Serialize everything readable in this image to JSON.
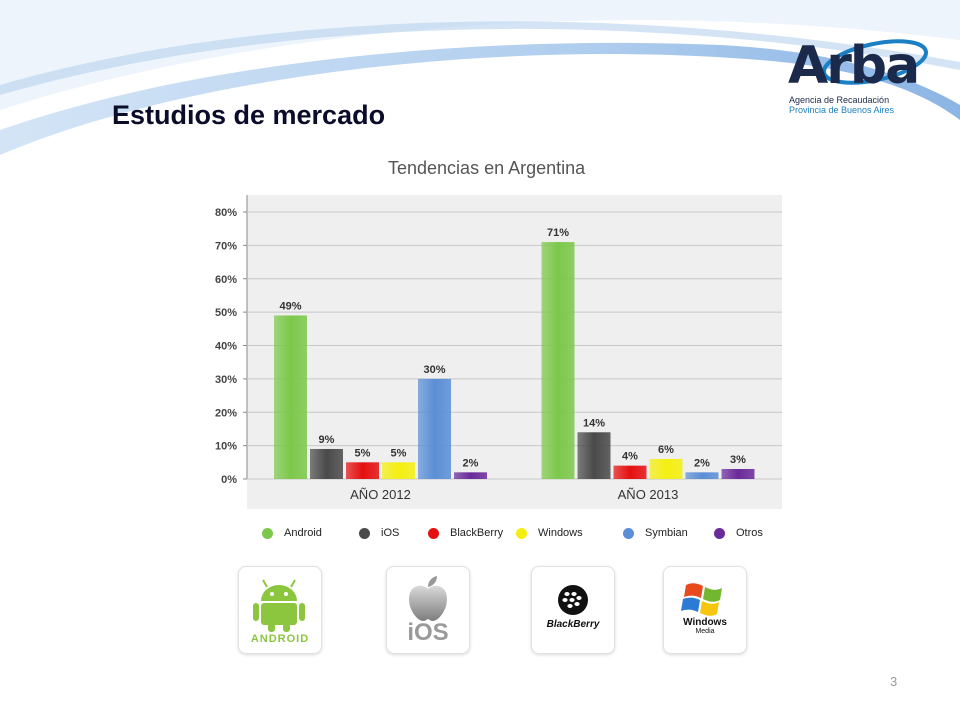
{
  "slide": {
    "title": "Estudios de mercado",
    "page_number": "3"
  },
  "logo": {
    "word": "Arba",
    "line1": "Agencia de Recaudación",
    "line2": "Provincia de Buenos Aires"
  },
  "chart_data": {
    "type": "bar",
    "title": "Tendencias en Argentina",
    "categories": [
      "AÑO 2012",
      "AÑO 2013"
    ],
    "y_ticks": [
      "0%",
      "10%",
      "20%",
      "30%",
      "40%",
      "50%",
      "60%",
      "70%",
      "80%"
    ],
    "ylim": [
      0,
      80
    ],
    "grid": true,
    "legend_position": "bottom",
    "series": [
      {
        "name": "Android",
        "color": "#7cc84a",
        "values": [
          49,
          71
        ],
        "labels": [
          "49%",
          "71%"
        ]
      },
      {
        "name": "iOS",
        "color": "#4a4a4a",
        "values": [
          9,
          14
        ],
        "labels": [
          "9%",
          "14%"
        ]
      },
      {
        "name": "BlackBerry",
        "color": "#e51010",
        "values": [
          5,
          4
        ],
        "labels": [
          "5%",
          "4%"
        ]
      },
      {
        "name": "Windows",
        "color": "#f4ef10",
        "values": [
          5,
          6
        ],
        "labels": [
          "5%",
          "6%"
        ]
      },
      {
        "name": "Symbian",
        "color": "#5b8ed6",
        "values": [
          30,
          2
        ],
        "labels": [
          "30%",
          "2%"
        ]
      },
      {
        "name": "Otros",
        "color": "#6a2a9a",
        "values": [
          2,
          3
        ],
        "labels": [
          "2%",
          "3%"
        ]
      }
    ]
  },
  "brands": {
    "android_text": "ANDROID",
    "ios_text": "iOS",
    "blackberry_text": "BlackBerry",
    "windows_text": "Windows",
    "windows_sub": "Media"
  }
}
